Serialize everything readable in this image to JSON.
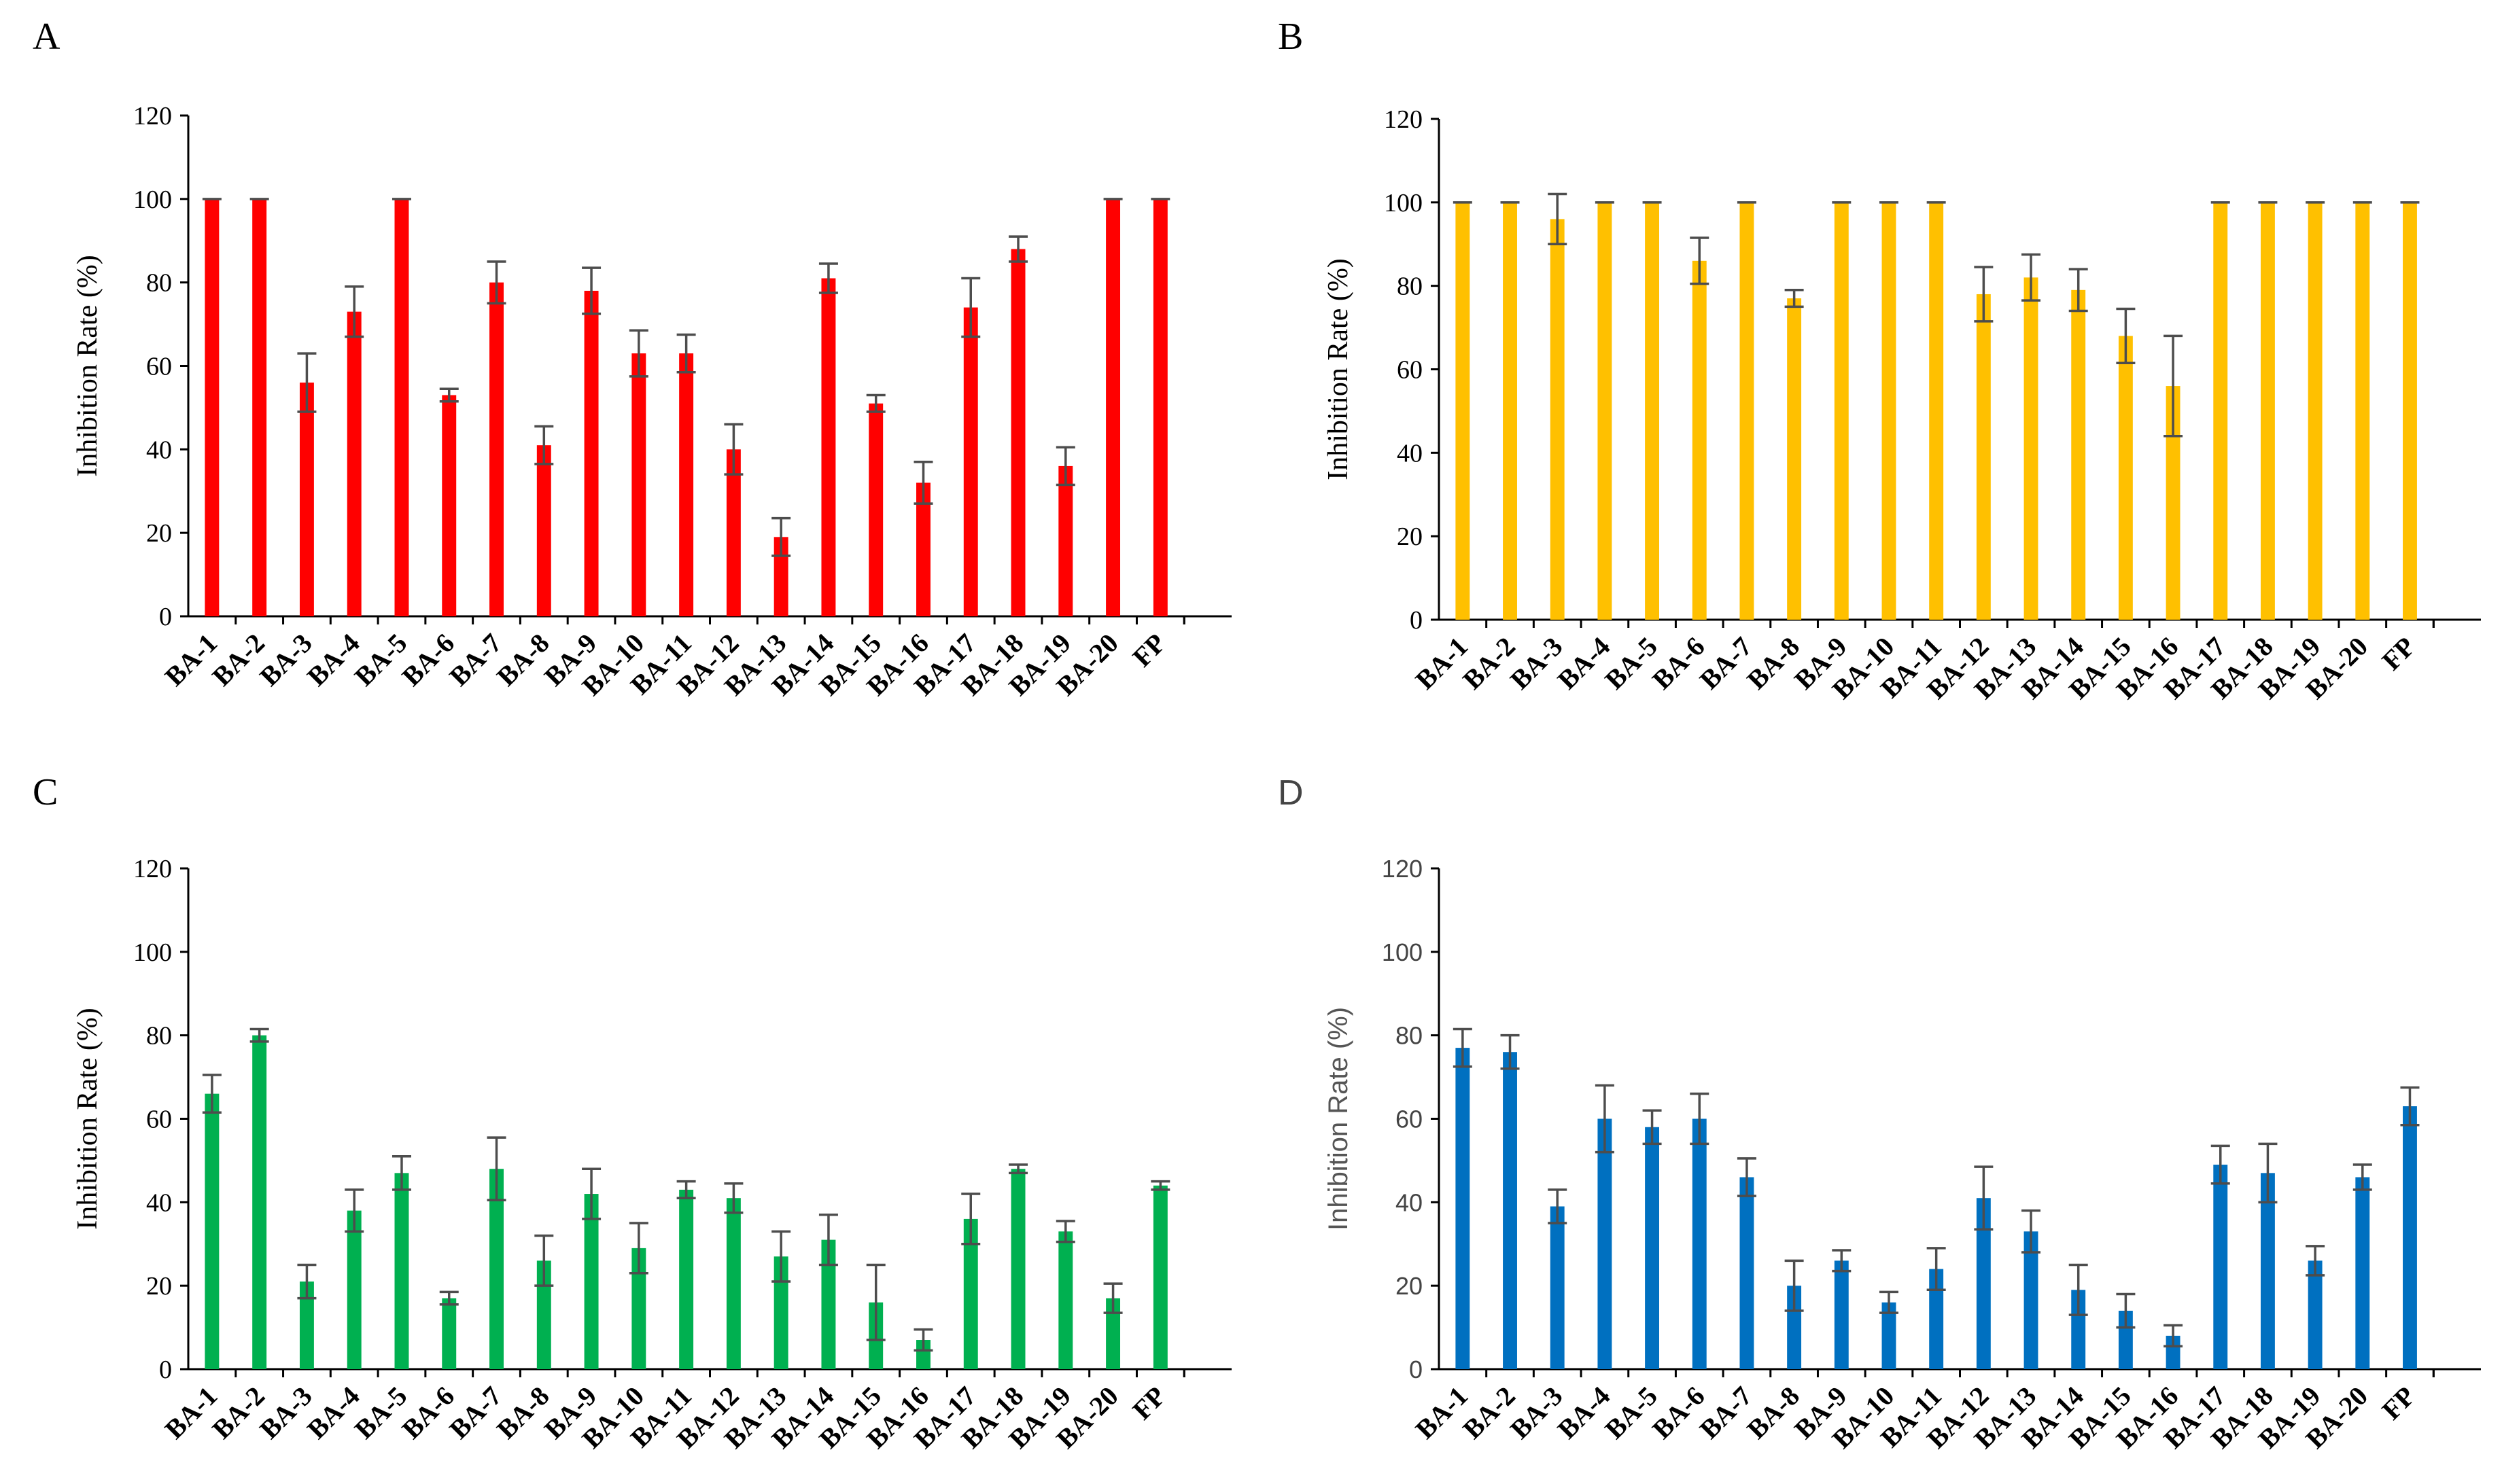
{
  "chart_data": [
    {
      "panel": "A",
      "type": "bar",
      "ylabel": "Inhibition Rate (%)",
      "ylim": [
        0,
        120
      ],
      "yticks": [
        "0",
        "20",
        "40",
        "60",
        "80",
        "100",
        "120"
      ],
      "categories": [
        "BA-1",
        "BA-2",
        "BA-3",
        "BA-4",
        "BA-5",
        "BA-6",
        "BA-7",
        "BA-8",
        "BA-9",
        "BA-10",
        "BA-11",
        "BA-12",
        "BA-13",
        "BA-14",
        "BA-15",
        "BA-16",
        "BA-17",
        "BA-18",
        "BA-19",
        "BA-20",
        "FP"
      ],
      "values": [
        100,
        100,
        56,
        73,
        100,
        53,
        80,
        41,
        78,
        63,
        63,
        40,
        19,
        81,
        51,
        32,
        74,
        88,
        36,
        100,
        100
      ],
      "errors": [
        0,
        0,
        7,
        6,
        0,
        1.5,
        5,
        4.5,
        5.5,
        5.5,
        4.5,
        6,
        4.5,
        3.5,
        2,
        5,
        7,
        3,
        4.5,
        0,
        0
      ],
      "color": "#ff0000",
      "letter_style": "serif"
    },
    {
      "panel": "B",
      "type": "bar",
      "ylabel": "Inhibition Rate (%)",
      "ylim": [
        0,
        120
      ],
      "yticks": [
        "0",
        "20",
        "40",
        "60",
        "80",
        "100",
        "120"
      ],
      "categories": [
        "BA-1",
        "BA-2",
        "BA-3",
        "BA-4",
        "BA-5",
        "BA-6",
        "BA-7",
        "BA-8",
        "BA-9",
        "BA-10",
        "BA-11",
        "BA-12",
        "BA-13",
        "BA-14",
        "BA-15",
        "BA-16",
        "BA-17",
        "BA-18",
        "BA-19",
        "BA-20",
        "FP"
      ],
      "values": [
        100,
        100,
        96,
        100,
        100,
        86,
        100,
        77,
        100,
        100,
        100,
        78,
        82,
        79,
        68,
        56,
        100,
        100,
        100,
        100,
        100
      ],
      "errors": [
        0,
        0,
        6,
        0,
        0,
        5.5,
        0,
        2,
        0,
        0,
        0,
        6.5,
        5.5,
        5,
        6.5,
        12,
        0,
        0,
        0,
        0,
        0
      ],
      "color": "#ffc000",
      "letter_style": "serif"
    },
    {
      "panel": "C",
      "type": "bar",
      "ylabel": "Inhibition Rate (%)",
      "ylim": [
        0,
        120
      ],
      "yticks": [
        "0",
        "20",
        "40",
        "60",
        "80",
        "100",
        "120"
      ],
      "categories": [
        "BA-1",
        "BA-2",
        "BA-3",
        "BA-4",
        "BA-5",
        "BA-6",
        "BA-7",
        "BA-8",
        "BA-9",
        "BA-10",
        "BA-11",
        "BA-12",
        "BA-13",
        "BA-14",
        "BA-15",
        "BA-16",
        "BA-17",
        "BA-18",
        "BA-19",
        "BA-20",
        "FP"
      ],
      "values": [
        66,
        80,
        21,
        38,
        47,
        17,
        48,
        26,
        42,
        29,
        43,
        41,
        27,
        31,
        16,
        7,
        36,
        48,
        33,
        17,
        44
      ],
      "errors": [
        4.5,
        1.5,
        4,
        5,
        4,
        1.5,
        7.5,
        6,
        6,
        6,
        2,
        3.5,
        6,
        6,
        9,
        2.5,
        6,
        1,
        2.5,
        3.5,
        1
      ],
      "color": "#00b050",
      "letter_style": "serif"
    },
    {
      "panel": "D",
      "type": "bar",
      "ylabel": "Inhibition Rate (%)",
      "ylim": [
        0,
        120
      ],
      "yticks": [
        "0",
        "20",
        "40",
        "60",
        "80",
        "100",
        "120"
      ],
      "categories": [
        "BA-1",
        "BA-2",
        "BA-3",
        "BA-4",
        "BA-5",
        "BA-6",
        "BA-7",
        "BA-8",
        "BA-9",
        "BA-10",
        "BA-11",
        "BA-12",
        "BA-13",
        "BA-14",
        "BA-15",
        "BA-16",
        "BA-17",
        "BA-18",
        "BA-19",
        "BA-20",
        "FP"
      ],
      "values": [
        77,
        76,
        39,
        60,
        58,
        60,
        46,
        20,
        26,
        16,
        24,
        41,
        33,
        19,
        14,
        8,
        49,
        47,
        26,
        46,
        63
      ],
      "errors": [
        4.5,
        4,
        4,
        8,
        4,
        6,
        4.5,
        6,
        2.5,
        2.5,
        5,
        7.5,
        5,
        6,
        4,
        2.5,
        4.5,
        7,
        3.5,
        3,
        4.5
      ],
      "color": "#0070c0",
      "letter_style": "sans"
    }
  ]
}
